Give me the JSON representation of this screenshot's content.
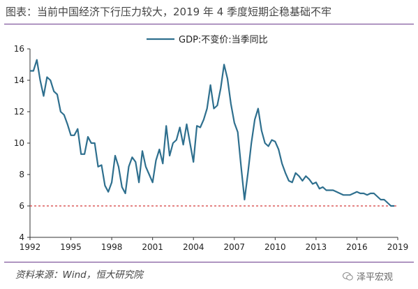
{
  "title": "图表：当前中国经济下行压力较大，2019 年 4 季度短期企稳基础不牢",
  "source": "资料来源：Wind，恒大研究院",
  "brand": {
    "text": "泽平宏观",
    "icon": "wechat-icon"
  },
  "colors": {
    "line": "#2e6f8e",
    "reference": "#d43a3a",
    "rule": "#6a3a8c"
  },
  "chart_data": {
    "type": "line",
    "series": [
      {
        "name": "GDP:不变价:当季同比",
        "points": [
          [
            1992.0,
            14.6
          ],
          [
            1992.25,
            14.6
          ],
          [
            1992.5,
            15.3
          ],
          [
            1992.75,
            14.0
          ],
          [
            1993.0,
            13.0
          ],
          [
            1993.25,
            14.2
          ],
          [
            1993.5,
            14.0
          ],
          [
            1993.75,
            13.3
          ],
          [
            1994.0,
            13.1
          ],
          [
            1994.25,
            12.0
          ],
          [
            1994.5,
            11.8
          ],
          [
            1994.75,
            11.2
          ],
          [
            1995.0,
            10.5
          ],
          [
            1995.25,
            10.5
          ],
          [
            1995.5,
            10.9
          ],
          [
            1995.75,
            9.3
          ],
          [
            1996.0,
            9.3
          ],
          [
            1996.25,
            10.4
          ],
          [
            1996.5,
            10.0
          ],
          [
            1996.75,
            10.0
          ],
          [
            1997.0,
            8.5
          ],
          [
            1997.25,
            8.6
          ],
          [
            1997.5,
            7.3
          ],
          [
            1997.75,
            6.9
          ],
          [
            1998.0,
            7.5
          ],
          [
            1998.25,
            9.2
          ],
          [
            1998.5,
            8.5
          ],
          [
            1998.75,
            7.2
          ],
          [
            1999.0,
            6.8
          ],
          [
            1999.25,
            8.5
          ],
          [
            1999.5,
            9.1
          ],
          [
            1999.75,
            8.8
          ],
          [
            2000.0,
            7.5
          ],
          [
            2000.25,
            9.5
          ],
          [
            2000.5,
            8.5
          ],
          [
            2000.75,
            8.0
          ],
          [
            2001.0,
            7.5
          ],
          [
            2001.25,
            8.9
          ],
          [
            2001.5,
            9.6
          ],
          [
            2001.75,
            8.7
          ],
          [
            2002.0,
            11.1
          ],
          [
            2002.25,
            9.2
          ],
          [
            2002.5,
            10.0
          ],
          [
            2002.75,
            10.2
          ],
          [
            2003.0,
            11.0
          ],
          [
            2003.25,
            9.9
          ],
          [
            2003.5,
            11.2
          ],
          [
            2003.75,
            10.0
          ],
          [
            2004.0,
            8.8
          ],
          [
            2004.25,
            11.1
          ],
          [
            2004.5,
            11.0
          ],
          [
            2004.75,
            11.5
          ],
          [
            2005.0,
            12.2
          ],
          [
            2005.25,
            13.7
          ],
          [
            2005.5,
            12.2
          ],
          [
            2005.75,
            12.4
          ],
          [
            2006.0,
            13.5
          ],
          [
            2006.25,
            15.0
          ],
          [
            2006.5,
            14.1
          ],
          [
            2006.75,
            12.5
          ],
          [
            2007.0,
            11.3
          ],
          [
            2007.25,
            10.7
          ],
          [
            2007.5,
            8.5
          ],
          [
            2007.75,
            6.4
          ],
          [
            2008.0,
            8.1
          ],
          [
            2008.25,
            10.0
          ],
          [
            2008.5,
            11.5
          ],
          [
            2008.75,
            12.2
          ],
          [
            2009.0,
            10.8
          ],
          [
            2009.25,
            10.0
          ],
          [
            2009.5,
            9.8
          ],
          [
            2009.75,
            10.2
          ],
          [
            2010.0,
            10.1
          ],
          [
            2010.25,
            9.6
          ],
          [
            2010.5,
            8.7
          ],
          [
            2010.75,
            8.1
          ],
          [
            2011.0,
            7.6
          ],
          [
            2011.25,
            7.5
          ],
          [
            2011.5,
            8.1
          ],
          [
            2011.75,
            7.9
          ],
          [
            2012.0,
            7.6
          ],
          [
            2012.25,
            7.9
          ],
          [
            2012.5,
            7.7
          ],
          [
            2012.75,
            7.4
          ],
          [
            2013.0,
            7.5
          ],
          [
            2013.25,
            7.1
          ],
          [
            2013.5,
            7.2
          ],
          [
            2013.75,
            7.0
          ],
          [
            2014.0,
            7.0
          ],
          [
            2014.25,
            7.0
          ],
          [
            2014.5,
            6.9
          ],
          [
            2014.75,
            6.8
          ],
          [
            2015.0,
            6.7
          ],
          [
            2015.25,
            6.7
          ],
          [
            2015.5,
            6.7
          ],
          [
            2015.75,
            6.8
          ],
          [
            2016.0,
            6.9
          ],
          [
            2016.25,
            6.8
          ],
          [
            2016.5,
            6.8
          ],
          [
            2016.75,
            6.7
          ],
          [
            2017.0,
            6.8
          ],
          [
            2017.25,
            6.8
          ],
          [
            2017.5,
            6.6
          ],
          [
            2017.75,
            6.4
          ],
          [
            2018.0,
            6.4
          ],
          [
            2018.25,
            6.2
          ],
          [
            2018.5,
            6.0
          ],
          [
            2018.75,
            6.0
          ]
        ]
      }
    ],
    "reference_line": {
      "y": 6,
      "style": "dashed"
    },
    "x_ticks": [
      "1992",
      "1995",
      "1998",
      "2001",
      "2004",
      "2007",
      "2010",
      "2013",
      "2016",
      "2019"
    ],
    "y_ticks": [
      "4",
      "6",
      "8",
      "10",
      "12",
      "14",
      "16"
    ],
    "xlim": [
      1992,
      2019
    ],
    "ylim": [
      4,
      16
    ],
    "legend_position": "top-center",
    "grid": false
  }
}
